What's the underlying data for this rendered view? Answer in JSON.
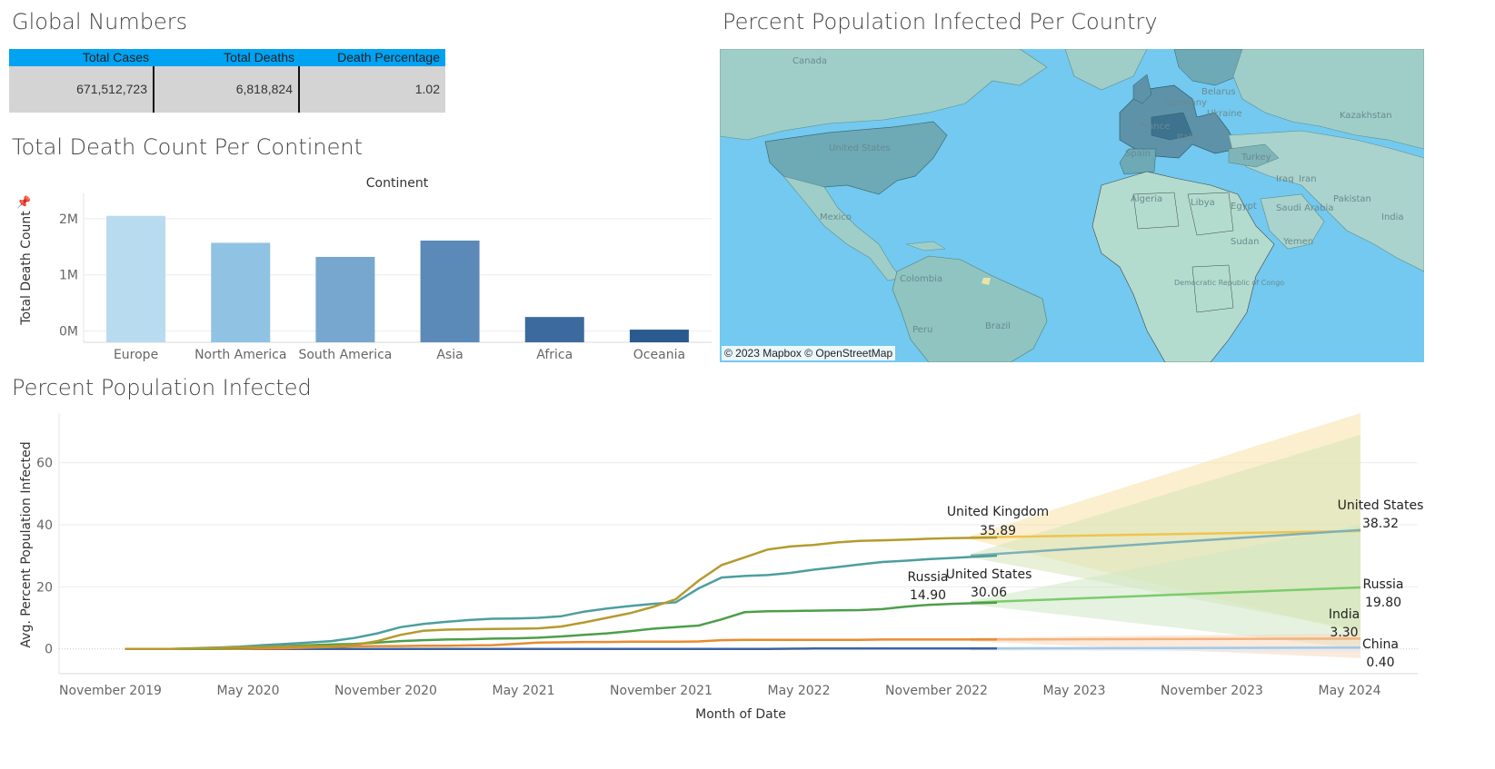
{
  "global": {
    "title": "Global Numbers",
    "headers": [
      "Total Cases",
      "Total Deaths",
      "Death Percentage"
    ],
    "values": [
      "671,512,723",
      "6,818,824",
      "1.02"
    ]
  },
  "map": {
    "title": "Percent Population Infected Per Country",
    "attribution": "© 2023 Mapbox © OpenStreetMap",
    "labels": [
      "Canada",
      "United States",
      "Mexico",
      "Colombia",
      "Brazil",
      "Peru",
      "Algeria",
      "Libya",
      "Egypt",
      "Sudan",
      "Democratic Republic of Congo",
      "Saudi Arabia",
      "Yemen",
      "Iran",
      "Iraq",
      "Pakistan",
      "India",
      "Kazakhstan",
      "Turkey",
      "Ukraine",
      "France",
      "Germany",
      "Italy",
      "Spain",
      "Belarus"
    ]
  },
  "chart_data": [
    {
      "type": "bar",
      "title": "Total Death Count Per Continent",
      "header": "Continent",
      "ylabel": "Total Death Count",
      "categories": [
        "Europe",
        "North America",
        "South America",
        "Asia",
        "Africa",
        "Oceania"
      ],
      "values": [
        2050000,
        1570000,
        1320000,
        1610000,
        250000,
        25000
      ],
      "colors": [
        "#b9dbf0",
        "#90c2e3",
        "#77a7cf",
        "#5c8ab8",
        "#3d6a9e",
        "#2b5a8f"
      ],
      "yticks": [
        0,
        1000000,
        2000000
      ],
      "ytick_labels": [
        "0M",
        "1M",
        "2M"
      ],
      "ylim": [
        -200000,
        2450000
      ]
    },
    {
      "type": "line",
      "title": "Percent Population Infected",
      "xlabel": "Month of Date",
      "ylabel": "Avg. Percent Population Infected",
      "ylim": [
        -8,
        76
      ],
      "yticks": [
        0,
        20,
        40,
        60
      ],
      "xticks": [
        "November 2019",
        "May 2020",
        "November 2020",
        "May 2021",
        "November 2021",
        "May 2022",
        "November 2022",
        "May 2023",
        "November 2023",
        "May 2024"
      ],
      "months": [
        "2019-11",
        "2019-12",
        "2020-01",
        "2020-02",
        "2020-03",
        "2020-04",
        "2020-05",
        "2020-06",
        "2020-07",
        "2020-08",
        "2020-09",
        "2020-10",
        "2020-11",
        "2020-12",
        "2021-01",
        "2021-02",
        "2021-03",
        "2021-04",
        "2021-05",
        "2021-06",
        "2021-07",
        "2021-08",
        "2021-09",
        "2021-10",
        "2021-11",
        "2021-12",
        "2022-01",
        "2022-02",
        "2022-03",
        "2022-04",
        "2022-05",
        "2022-06",
        "2022-07",
        "2022-08",
        "2022-09",
        "2022-10",
        "2022-11",
        "2022-12",
        "2023-01"
      ],
      "series": [
        {
          "name": "United Kingdom",
          "color": "#b59a2e",
          "values": [
            0,
            0,
            0,
            0.1,
            0.3,
            0.5,
            0.6,
            0.7,
            0.8,
            0.9,
            1.3,
            2.5,
            4.5,
            5.8,
            6.2,
            6.3,
            6.4,
            6.5,
            6.6,
            7.2,
            8.5,
            10,
            11.5,
            13.5,
            16,
            22,
            27,
            29.5,
            32,
            33,
            33.5,
            34.3,
            34.8,
            35,
            35.2,
            35.5,
            35.7,
            35.8,
            35.89
          ],
          "last_label": "35.89"
        },
        {
          "name": "United States",
          "color": "#4d9e9e",
          "values": [
            0,
            0,
            0,
            0.2,
            0.4,
            0.7,
            1.2,
            1.6,
            2,
            2.5,
            3.5,
            5,
            7,
            8,
            8.7,
            9.3,
            9.7,
            9.8,
            10,
            10.5,
            12,
            13,
            13.8,
            14.5,
            15,
            19.5,
            23,
            23.5,
            23.8,
            24.5,
            25.5,
            26.3,
            27.2,
            28,
            28.4,
            28.9,
            29.3,
            29.7,
            30.06
          ],
          "last_label": "30.06"
        },
        {
          "name": "Russia",
          "color": "#4d9e4a",
          "values": [
            0,
            0,
            0,
            0,
            0.1,
            0.3,
            0.6,
            0.9,
            1.2,
            1.4,
            1.6,
            2,
            2.5,
            2.8,
            3,
            3.1,
            3.3,
            3.4,
            3.6,
            4,
            4.5,
            5,
            5.7,
            6.5,
            7,
            7.5,
            9.5,
            11.8,
            12.1,
            12.2,
            12.3,
            12.4,
            12.5,
            12.8,
            13.6,
            14.2,
            14.5,
            14.7,
            14.9
          ],
          "last_label": "14.90"
        },
        {
          "name": "India",
          "color": "#e88b2e",
          "values": [
            0,
            0,
            0,
            0,
            0,
            0,
            0.1,
            0.2,
            0.4,
            0.6,
            0.8,
            0.9,
            0.9,
            1,
            1,
            1.1,
            1.2,
            1.6,
            2,
            2.1,
            2.2,
            2.2,
            2.3,
            2.3,
            2.3,
            2.4,
            2.8,
            2.9,
            2.9,
            2.9,
            2.9,
            2.9,
            2.9,
            3,
            3,
            3,
            3,
            3,
            3.0
          ],
          "last_label": ""
        },
        {
          "name": "China",
          "color": "#3b63a4",
          "values": [
            0,
            0,
            0,
            0,
            0,
            0,
            0,
            0,
            0,
            0,
            0,
            0,
            0,
            0,
            0,
            0,
            0,
            0,
            0,
            0,
            0,
            0,
            0,
            0,
            0,
            0,
            0,
            0,
            0,
            0.05,
            0.1,
            0.1,
            0.1,
            0.1,
            0.1,
            0.1,
            0.1,
            0.1,
            0.1
          ],
          "last_label": ""
        }
      ],
      "forecast": [
        {
          "name": "United Kingdom",
          "start": 35.89,
          "end": 38.0,
          "upper_end": 76,
          "lower_end": 5,
          "color": "#f0c44e",
          "band": "#f8e1a8",
          "end_label": ""
        },
        {
          "name": "United States",
          "start": 30.06,
          "end": 38.32,
          "upper_end": 69,
          "lower_end": 6,
          "color": "#7fb0b8",
          "band": "#d7e3b8",
          "end_label": "38.32"
        },
        {
          "name": "Russia",
          "start": 14.9,
          "end": 19.8,
          "upper_end": 40,
          "lower_end": 0,
          "color": "#7dcb6e",
          "band": "#cfe7c4",
          "end_label": "19.80"
        },
        {
          "name": "India",
          "start": 3.0,
          "end": 3.3,
          "upper_end": 5,
          "lower_end": -3,
          "color": "#f5b27a",
          "band": "#f8d9c0",
          "end_label": "3.30"
        },
        {
          "name": "China",
          "start": 0.1,
          "end": 0.4,
          "upper_end": 1,
          "lower_end": -1,
          "color": "#a6c8e3",
          "band": "#dde9f4",
          "end_label": "0.40"
        }
      ],
      "annotations": [
        {
          "series": "United Kingdom",
          "text": "United Kingdom",
          "value": "35.89"
        },
        {
          "series": "United States",
          "text": "United States",
          "value": "30.06"
        },
        {
          "series": "Russia",
          "text": "Russia",
          "value": "14.90"
        },
        {
          "series": "United States forecast",
          "text": "United States",
          "value": "38.32"
        },
        {
          "series": "Russia forecast",
          "text": "Russia",
          "value": "19.80"
        },
        {
          "series": "India forecast",
          "text": "India",
          "value": "3.30"
        },
        {
          "series": "China forecast",
          "text": "China",
          "value": "0.40"
        }
      ]
    }
  ]
}
